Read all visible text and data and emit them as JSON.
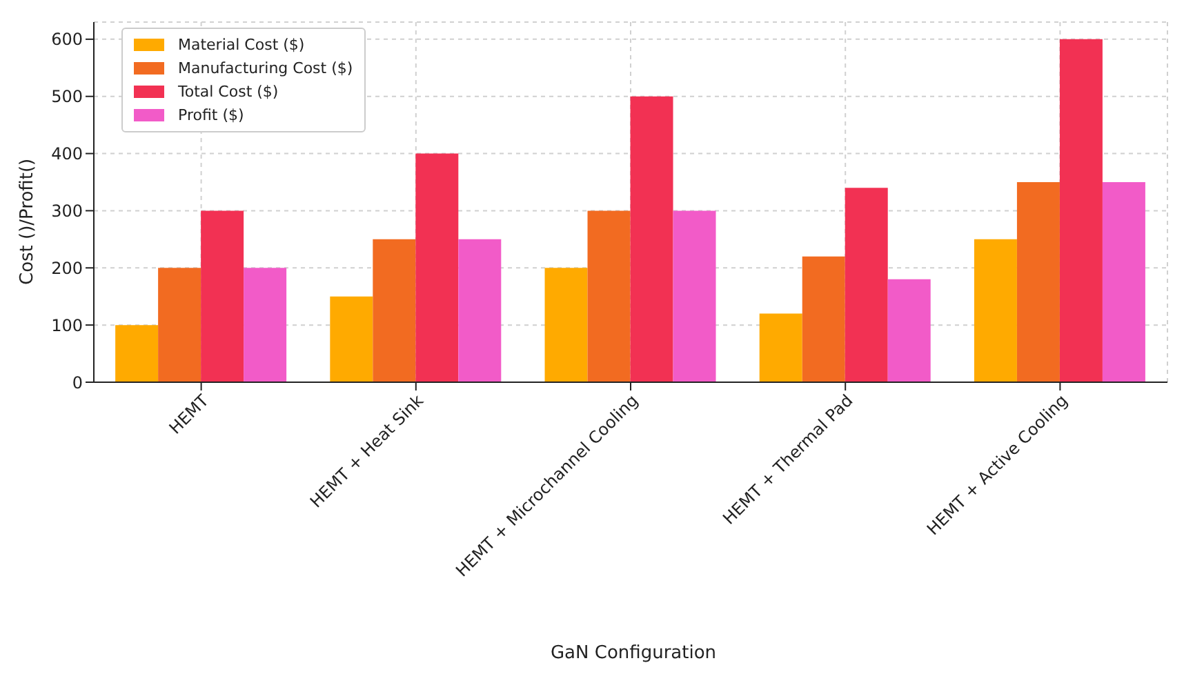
{
  "chart_data": {
    "type": "bar",
    "xlabel": "GaN Configuration",
    "ylabel": "Cost ()/Profit()",
    "categories": [
      "HEMT",
      "HEMT + Heat Sink",
      "HEMT + Microchannel Cooling",
      "HEMT + Thermal Pad",
      "HEMT + Active Cooling"
    ],
    "series": [
      {
        "name": "Material Cost ($)",
        "color": "#ffaa00",
        "values": [
          100,
          150,
          200,
          120,
          250
        ]
      },
      {
        "name": "Manufacturing Cost ($)",
        "color": "#f26b21",
        "values": [
          200,
          250,
          300,
          220,
          350
        ]
      },
      {
        "name": "Total Cost ($)",
        "color": "#f23153",
        "values": [
          300,
          400,
          500,
          340,
          600
        ]
      },
      {
        "name": "Profit ($)",
        "color": "#f25bc8",
        "values": [
          200,
          250,
          300,
          180,
          350
        ]
      }
    ],
    "ylim": [
      0,
      630
    ],
    "yticks": [
      0,
      100,
      200,
      300,
      400,
      500,
      600
    ],
    "grid": true,
    "legend": "top left"
  }
}
